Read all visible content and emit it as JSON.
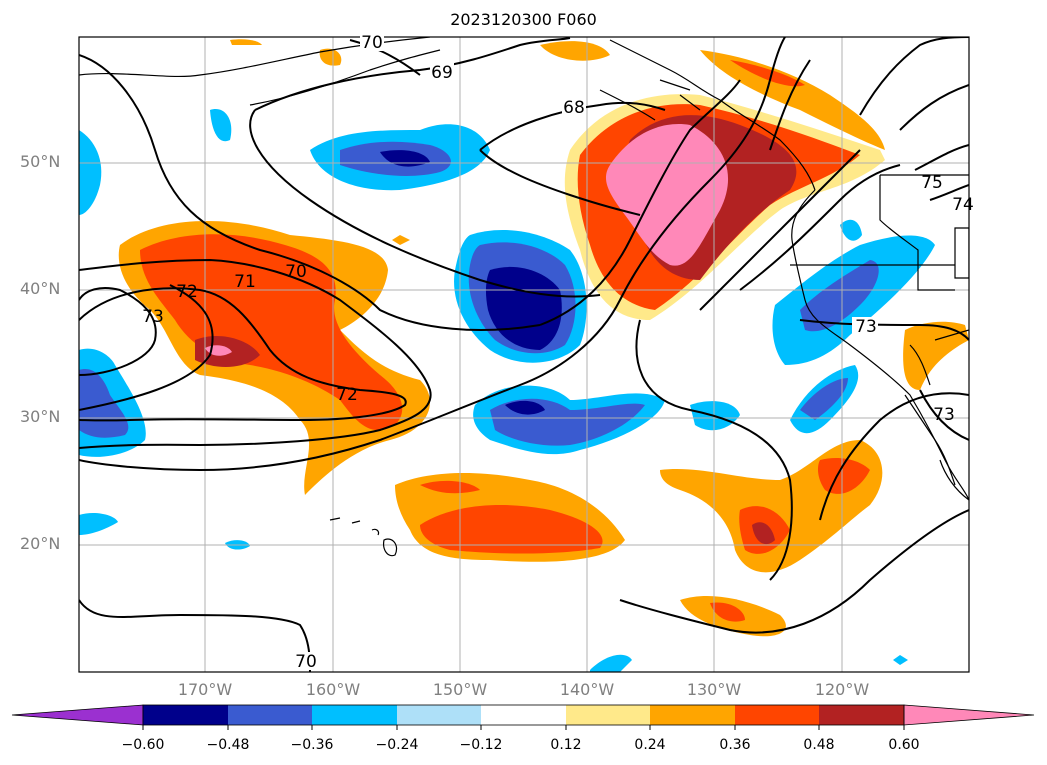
{
  "title": "2023120300 F060",
  "axes": {
    "lat_ticks": [
      "50°N",
      "40°N",
      "30°N",
      "20°N"
    ],
    "lon_ticks": [
      "170°W",
      "160°W",
      "150°W",
      "140°W",
      "130°W",
      "120°W"
    ]
  },
  "colorbar": {
    "ticks": [
      "−0.60",
      "−0.48",
      "−0.36",
      "−0.24",
      "−0.12",
      "0.12",
      "0.24",
      "0.36",
      "0.48",
      "0.60"
    ],
    "colors": [
      "#9b30d0",
      "#00008b",
      "#3a5bd0",
      "#00bfff",
      "#aee0f8",
      "#ffffff",
      "#ffe98a",
      "#ffa500",
      "#ff4500",
      "#b22222",
      "#ff88b8"
    ]
  },
  "contour_labels": [
    "70",
    "69",
    "68",
    "71",
    "70",
    "72",
    "73",
    "72",
    "73",
    "73",
    "74",
    "75",
    "70"
  ],
  "colors": {
    "neg_extreme": "#00008b",
    "neg_strong": "#3a5bd0",
    "neg_mid": "#00bfff",
    "neg_weak": "#aee0f8",
    "pos_weak": "#ffe98a",
    "pos_mid": "#ffa500",
    "pos_strong": "#ff4500",
    "pos_vstrong": "#b22222",
    "pos_extreme": "#ff88b8"
  }
}
